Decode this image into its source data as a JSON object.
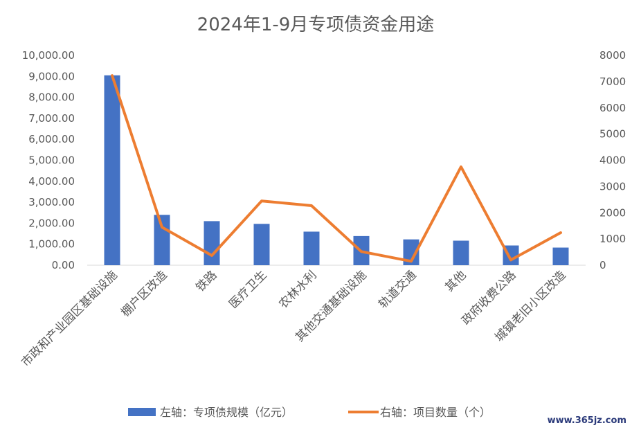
{
  "chart_data": {
    "type": "bar",
    "title": "2024年1-9月专项债资金用途",
    "categories": [
      "市政和产业园区基础设施",
      "棚户区改造",
      "铁路",
      "医疗卫生",
      "农林水利",
      "其他交通基础设施",
      "轨道交通",
      "其他",
      "政府收费公路",
      "城镇老旧小区改造"
    ],
    "series": [
      {
        "name": "左轴：专项债规模（亿元）",
        "type": "bar",
        "axis": "left",
        "color": "#4472C4",
        "values": [
          9050,
          2400,
          2100,
          1970,
          1600,
          1390,
          1230,
          1170,
          940,
          840
        ]
      },
      {
        "name": "右轴：项目数量（个）",
        "type": "line",
        "axis": "right",
        "color": "#ED7D31",
        "values": [
          7230,
          1450,
          370,
          2450,
          2270,
          520,
          150,
          3750,
          200,
          1240
        ]
      }
    ],
    "y_left": {
      "min": 0,
      "max": 10000,
      "step": 1000,
      "tick_labels": [
        "0.00",
        "1,000.00",
        "2,000.00",
        "3,000.00",
        "4,000.00",
        "5,000.00",
        "6,000.00",
        "7,000.00",
        "8,000.00",
        "9,000.00",
        "10,000.00"
      ]
    },
    "y_right": {
      "min": 0,
      "max": 8000,
      "step": 1000,
      "tick_labels": [
        "0",
        "1000",
        "2000",
        "3000",
        "4000",
        "5000",
        "6000",
        "7000",
        "8000"
      ]
    },
    "grid": false,
    "legend_position": "bottom"
  },
  "watermark": "www.365jz.com"
}
